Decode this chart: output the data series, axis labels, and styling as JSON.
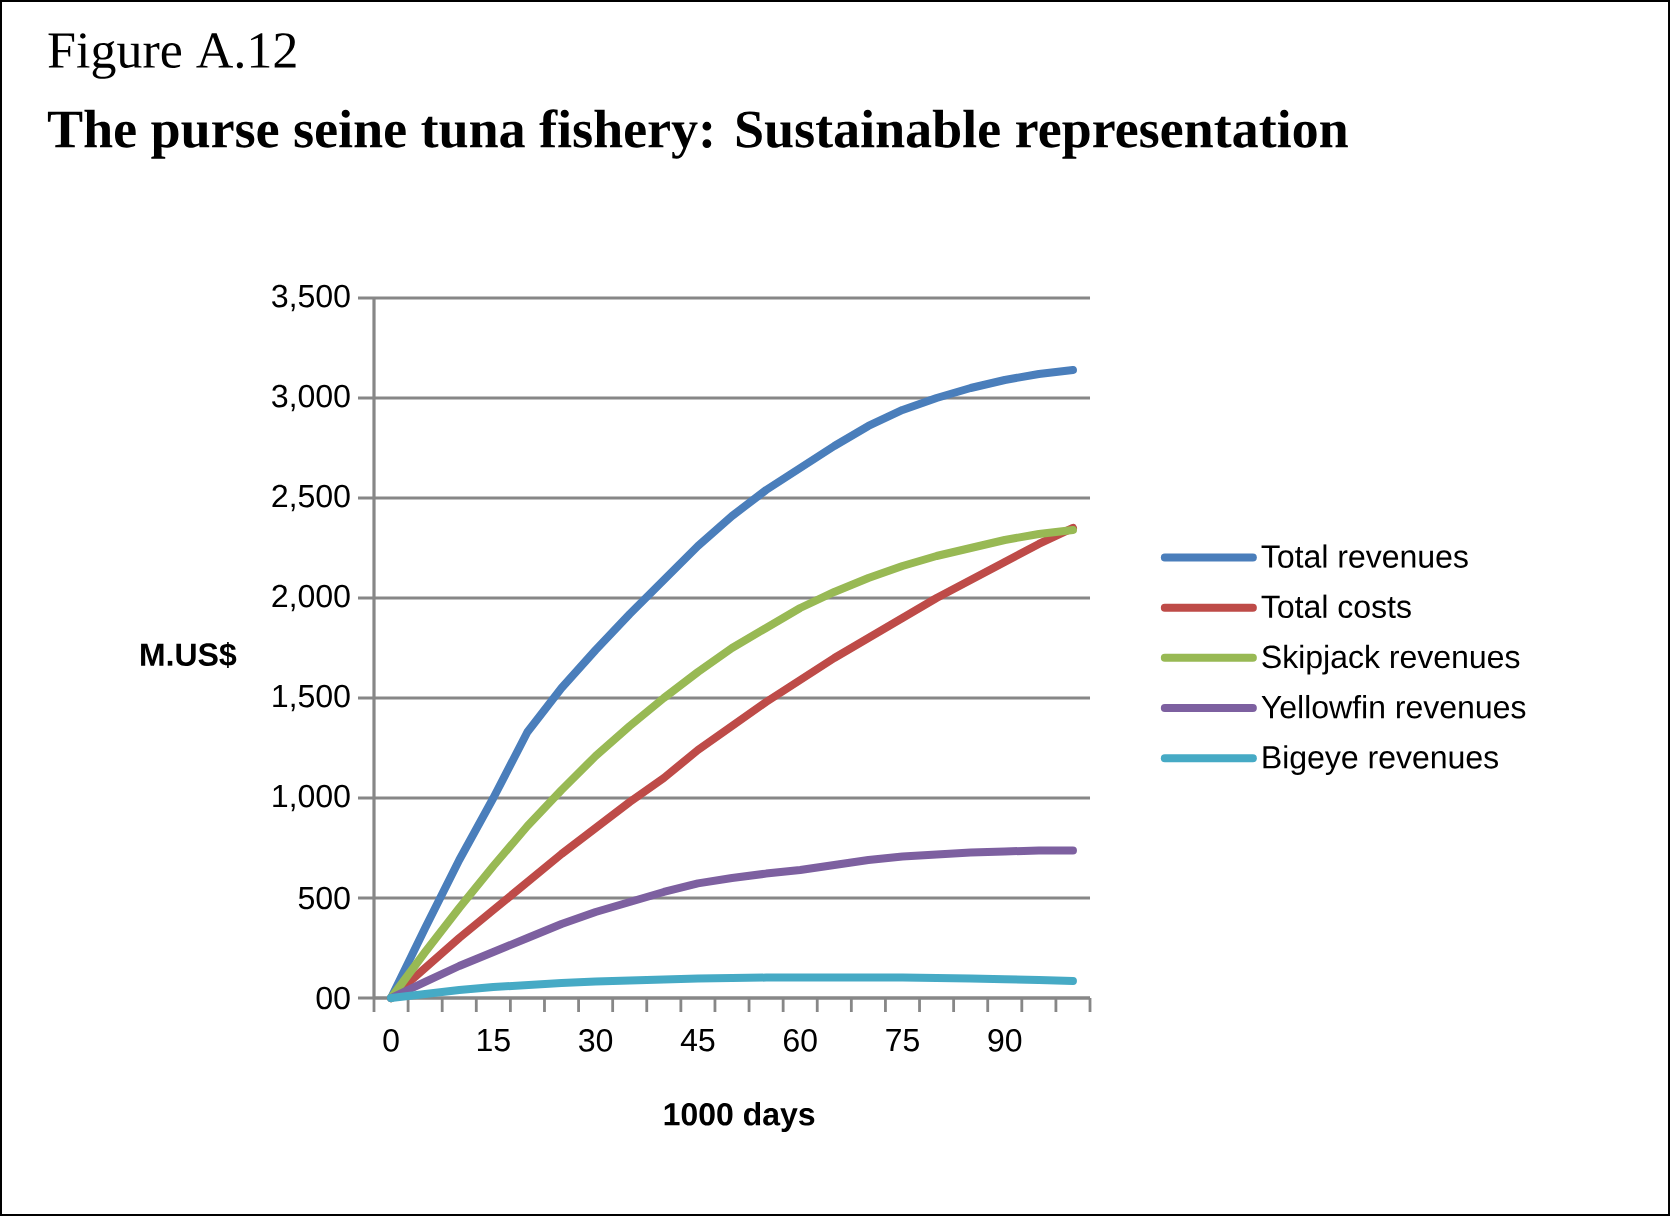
{
  "chart_data": {
    "type": "line",
    "title": "Figure A.12",
    "subtitle": "The purse seine tuna fishery: Sustainable representation",
    "xlabel": "1000 days",
    "ylabel": "M.US$",
    "x": [
      0,
      5,
      10,
      15,
      20,
      25,
      30,
      35,
      40,
      45,
      50,
      55,
      60,
      65,
      70,
      75,
      80,
      85,
      90,
      95,
      100
    ],
    "series": [
      {
        "name": "Total revenues",
        "color": "#4a7ebb",
        "values": [
          0,
          350,
          690,
          1000,
          1330,
          1550,
          1740,
          1920,
          2090,
          2260,
          2410,
          2540,
          2650,
          2760,
          2860,
          2940,
          3000,
          3050,
          3090,
          3120,
          3140
        ]
      },
      {
        "name": "Total costs",
        "color": "#be4b48",
        "values": [
          0,
          150,
          300,
          440,
          580,
          720,
          850,
          980,
          1100,
          1240,
          1360,
          1480,
          1590,
          1700,
          1800,
          1900,
          2000,
          2090,
          2180,
          2270,
          2350
        ]
      },
      {
        "name": "Skipjack revenues",
        "color": "#98b954",
        "values": [
          0,
          230,
          450,
          660,
          860,
          1040,
          1210,
          1360,
          1500,
          1630,
          1750,
          1850,
          1950,
          2030,
          2100,
          2160,
          2210,
          2250,
          2290,
          2320,
          2340
        ]
      },
      {
        "name": "Yellowfin revenues",
        "color": "#7d60a0",
        "values": [
          0,
          80,
          160,
          230,
          300,
          370,
          430,
          480,
          530,
          573,
          600,
          622,
          640,
          665,
          690,
          707,
          718,
          727,
          733,
          737,
          737
        ]
      },
      {
        "name": "Bigeye revenues",
        "color": "#46aac5",
        "values": [
          0,
          20,
          40,
          55,
          65,
          75,
          82,
          88,
          93,
          97,
          100,
          102,
          103,
          103,
          103,
          102,
          100,
          97,
          94,
          90,
          85
        ]
      }
    ],
    "xlim": [
      -2.5,
      102.5
    ],
    "xticks": [
      0,
      15,
      30,
      45,
      60,
      75,
      90,
      {
        "value": -2.5,
        "label": null
      },
      {
        "value": 2.5,
        "label": null
      },
      {
        "value": 7.5,
        "label": null
      },
      {
        "value": 12.5,
        "label": null
      },
      {
        "value": 17.5,
        "label": null
      },
      {
        "value": 22.5,
        "label": null
      },
      {
        "value": 27.5,
        "label": null
      },
      {
        "value": 32.5,
        "label": null
      },
      {
        "value": 37.5,
        "label": null
      },
      {
        "value": 42.5,
        "label": null
      },
      {
        "value": 47.5,
        "label": null
      },
      {
        "value": 52.5,
        "label": null
      },
      {
        "value": 57.5,
        "label": null
      },
      {
        "value": 62.5,
        "label": null
      },
      {
        "value": 67.5,
        "label": null
      },
      {
        "value": 72.5,
        "label": null
      },
      {
        "value": 77.5,
        "label": null
      },
      {
        "value": 82.5,
        "label": null
      },
      {
        "value": 87.5,
        "label": null
      },
      {
        "value": 92.5,
        "label": null
      },
      {
        "value": 97.5,
        "label": null
      },
      {
        "value": 102.5,
        "label": null
      }
    ],
    "ylim": [
      0,
      3500
    ],
    "yticks": [
      {
        "value": 0,
        "label": "00"
      },
      500,
      {
        "value": 1000,
        "label": "1,000"
      },
      {
        "value": 1500,
        "label": "1,500"
      },
      {
        "value": 2000,
        "label": "2,000"
      },
      {
        "value": 2500,
        "label": "2,500"
      },
      {
        "value": 3000,
        "label": "3,000"
      },
      {
        "value": 3500,
        "label": "3,500"
      }
    ],
    "grid": "y",
    "legend": "right",
    "marker": "none",
    "line_style": "solid"
  }
}
